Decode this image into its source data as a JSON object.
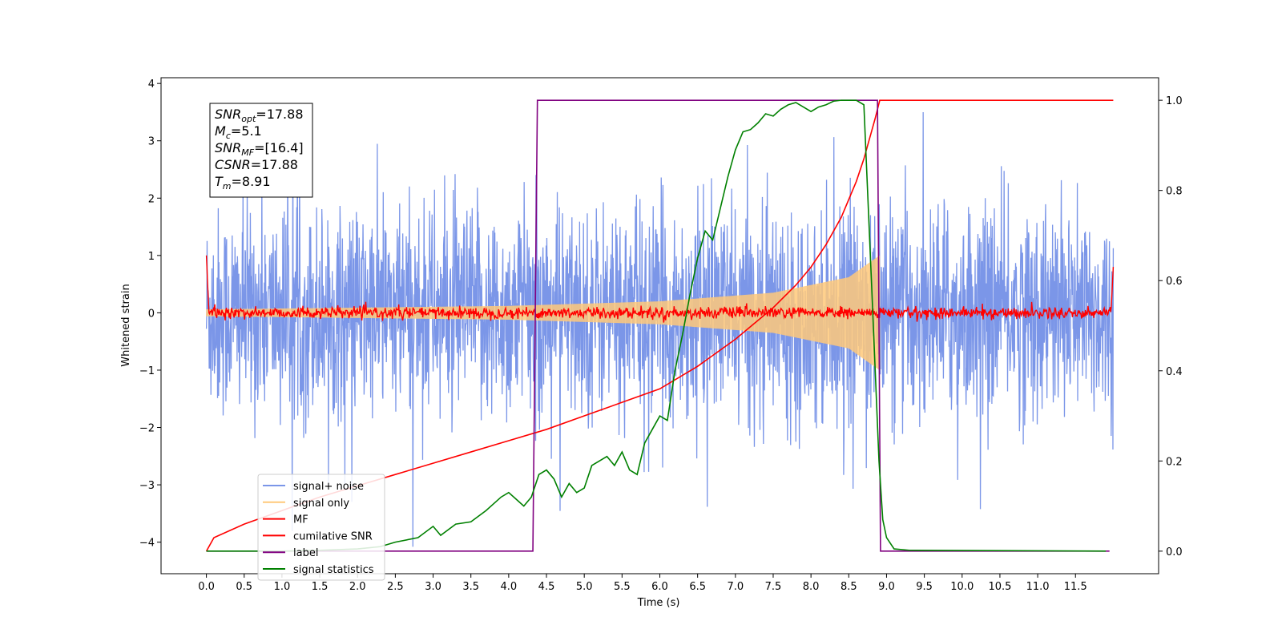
{
  "chart_data": {
    "type": "line",
    "xlabel": "Time (s)",
    "ylabel": "Whitened strain",
    "y2label": "",
    "xlim": [
      -0.6,
      12.6
    ],
    "ylim": [
      -4.55,
      4.1
    ],
    "y2lim": [
      -0.05,
      1.05
    ],
    "xticks": [
      "0.0",
      "0.5",
      "1.0",
      "1.5",
      "2.0",
      "2.5",
      "3.0",
      "3.5",
      "4.0",
      "4.5",
      "5.0",
      "5.5",
      "6.0",
      "6.5",
      "7.0",
      "7.5",
      "8.0",
      "8.5",
      "9.0",
      "9.5",
      "10.0",
      "10.5",
      "11.0",
      "11.5"
    ],
    "yticks": [
      "−4",
      "−3",
      "−2",
      "−1",
      "0",
      "1",
      "2",
      "3",
      "4"
    ],
    "y2ticks": [
      "0.0",
      "0.2",
      "0.4",
      "0.6",
      "0.8",
      "1.0"
    ],
    "grid": false,
    "legend_position": "lower-left",
    "info_box": {
      "position": "top-left",
      "lines": [
        {
          "main": "SNR",
          "sub": "opt",
          "rest": "=17.88"
        },
        {
          "main": "M",
          "sub": "c",
          "rest": "=5.1"
        },
        {
          "main": "SNR",
          "sub": "MF",
          "rest": "=[16.4]"
        },
        {
          "main": "CSNR",
          "sub": "",
          "rest": "=17.88"
        },
        {
          "main": "T",
          "sub": "m",
          "rest": "=8.91"
        }
      ]
    },
    "series": [
      {
        "name": "signal+ noise",
        "color": "#7b96e8",
        "kind": "noise",
        "axis": "left",
        "x_range": [
          0.0,
          12.0
        ],
        "amplitude": 2.4
      },
      {
        "name": "signal only",
        "color": "#ffc97a",
        "kind": "chirp",
        "axis": "left",
        "x_range": [
          0.0,
          8.91
        ],
        "envelope": [
          [
            0.0,
            0.06
          ],
          [
            4.0,
            0.12
          ],
          [
            6.0,
            0.2
          ],
          [
            7.5,
            0.35
          ],
          [
            8.5,
            0.62
          ],
          [
            8.91,
            1.0
          ]
        ]
      },
      {
        "name": "MF",
        "color": "#ff0000",
        "kind": "mf",
        "axis": "left",
        "x_range": [
          0.0,
          12.0
        ],
        "amplitude": 0.05
      },
      {
        "name": "cumilative SNR",
        "color": "#ff0000",
        "axis": "right",
        "x": [
          0.0,
          0.1,
          0.5,
          1.0,
          1.5,
          2.0,
          2.5,
          3.0,
          3.5,
          4.0,
          4.5,
          5.0,
          5.5,
          6.0,
          6.5,
          7.0,
          7.5,
          7.8,
          8.0,
          8.2,
          8.4,
          8.6,
          8.7,
          8.8,
          8.85,
          8.91,
          12.0
        ],
        "y": [
          0.0,
          0.03,
          0.06,
          0.09,
          0.12,
          0.145,
          0.17,
          0.195,
          0.22,
          0.245,
          0.27,
          0.3,
          0.33,
          0.36,
          0.41,
          0.47,
          0.54,
          0.59,
          0.63,
          0.68,
          0.74,
          0.82,
          0.87,
          0.93,
          0.96,
          1.0,
          1.0
        ]
      },
      {
        "name": "label",
        "color": "#800080",
        "axis": "right",
        "x": [
          0.0,
          4.32,
          4.38,
          8.88,
          8.92,
          11.95
        ],
        "y": [
          0.0,
          0.0,
          1.0,
          1.0,
          0.0,
          0.0
        ]
      },
      {
        "name": "signal statistics",
        "color": "#008000",
        "axis": "right",
        "x": [
          0.0,
          0.5,
          1.0,
          1.5,
          2.0,
          2.3,
          2.5,
          2.8,
          3.0,
          3.1,
          3.3,
          3.5,
          3.7,
          3.9,
          4.0,
          4.1,
          4.2,
          4.3,
          4.4,
          4.5,
          4.6,
          4.7,
          4.8,
          4.9,
          5.0,
          5.1,
          5.2,
          5.3,
          5.4,
          5.5,
          5.6,
          5.7,
          5.8,
          5.9,
          6.0,
          6.1,
          6.2,
          6.3,
          6.4,
          6.5,
          6.6,
          6.7,
          6.8,
          6.9,
          7.0,
          7.1,
          7.2,
          7.3,
          7.4,
          7.5,
          7.6,
          7.7,
          7.8,
          7.9,
          8.0,
          8.1,
          8.2,
          8.3,
          8.4,
          8.5,
          8.6,
          8.7,
          8.8,
          8.85,
          8.9,
          8.95,
          9.0,
          9.1,
          9.3,
          11.9
        ],
        "y": [
          0.0,
          0.0,
          0.0,
          0.002,
          0.005,
          0.01,
          0.02,
          0.03,
          0.055,
          0.035,
          0.06,
          0.065,
          0.09,
          0.12,
          0.13,
          0.115,
          0.1,
          0.12,
          0.17,
          0.18,
          0.16,
          0.12,
          0.15,
          0.13,
          0.14,
          0.19,
          0.2,
          0.21,
          0.19,
          0.22,
          0.18,
          0.17,
          0.24,
          0.27,
          0.3,
          0.29,
          0.4,
          0.48,
          0.57,
          0.65,
          0.71,
          0.69,
          0.76,
          0.83,
          0.89,
          0.93,
          0.935,
          0.95,
          0.97,
          0.965,
          0.98,
          0.99,
          0.995,
          0.985,
          0.975,
          0.985,
          0.99,
          0.998,
          1.0,
          1.0,
          1.0,
          0.99,
          0.6,
          0.4,
          0.2,
          0.07,
          0.03,
          0.005,
          0.002,
          0.0
        ]
      }
    ]
  }
}
